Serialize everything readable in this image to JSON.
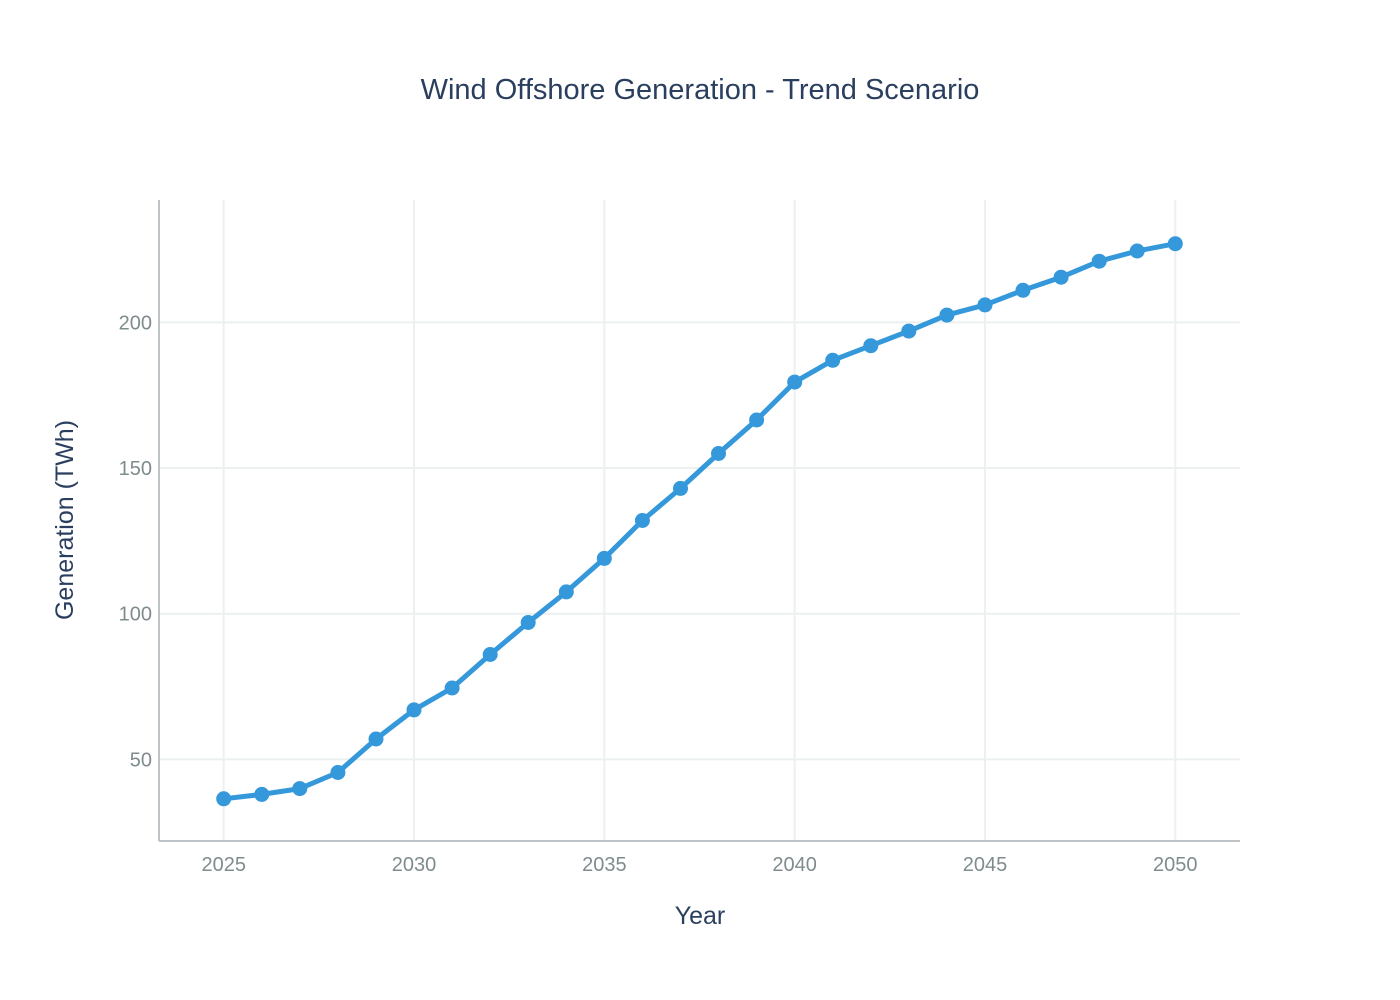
{
  "chart_data": {
    "type": "line",
    "title": "Wind Offshore Generation - Trend Scenario",
    "xlabel": "Year",
    "ylabel": "Generation (TWh)",
    "xlim": [
      2023.3,
      2051.7
    ],
    "ylim": [
      22,
      242
    ],
    "xticks": [
      2025,
      2030,
      2035,
      2040,
      2045,
      2050
    ],
    "yticks": [
      50,
      100,
      150,
      200
    ],
    "grid": true,
    "color": "#3498db",
    "series": [
      {
        "name": "Wind Offshore",
        "x": [
          2025,
          2026,
          2027,
          2028,
          2029,
          2030,
          2031,
          2032,
          2033,
          2034,
          2035,
          2036,
          2037,
          2038,
          2039,
          2040,
          2041,
          2042,
          2043,
          2044,
          2045,
          2046,
          2047,
          2048,
          2049,
          2050
        ],
        "values": [
          36.5,
          38,
          40,
          45.5,
          57,
          67,
          74.5,
          86,
          97,
          107.5,
          119,
          132,
          143,
          155,
          166.5,
          179.5,
          187,
          192,
          197,
          202.5,
          206,
          211,
          215.5,
          221,
          224.5,
          227
        ]
      }
    ]
  }
}
